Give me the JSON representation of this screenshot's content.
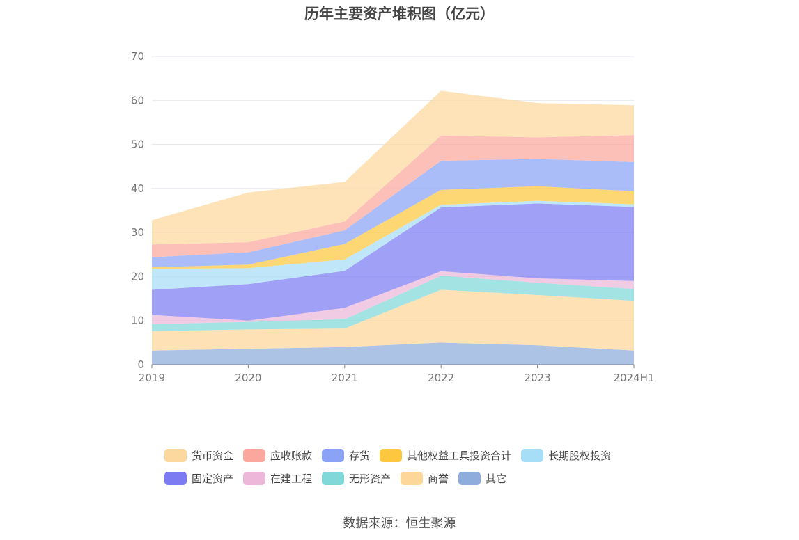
{
  "chart_data": {
    "type": "area",
    "stacked": true,
    "title": "历年主要资产堆积图（亿元）",
    "xlabel": "",
    "ylabel": "",
    "categories": [
      "2019",
      "2020",
      "2021",
      "2022",
      "2023",
      "2024H1"
    ],
    "ylim": [
      0,
      70
    ],
    "yticks": [
      0,
      10,
      20,
      30,
      40,
      50,
      60,
      70
    ],
    "grid": true,
    "legend_position": "bottom",
    "series": [
      {
        "name": "其它",
        "color": "#8eacdc",
        "values": [
          3.2,
          3.6,
          4.0,
          5.0,
          4.4,
          3.2
        ]
      },
      {
        "name": "商誉",
        "color": "#fdd79a",
        "values": [
          4.4,
          4.4,
          4.2,
          12.0,
          11.4,
          11.3
        ]
      },
      {
        "name": "无形资产",
        "color": "#80d8d8",
        "values": [
          1.6,
          1.7,
          2.1,
          3.2,
          2.8,
          2.7
        ]
      },
      {
        "name": "在建工程",
        "color": "#ecb7d9",
        "values": [
          2.1,
          0.3,
          2.6,
          1.0,
          1.0,
          1.8
        ]
      },
      {
        "name": "固定资产",
        "color": "#7c7bf2",
        "values": [
          5.7,
          8.3,
          8.4,
          14.5,
          17.0,
          16.8
        ]
      },
      {
        "name": "长期股权投资",
        "color": "#a7def7",
        "values": [
          4.8,
          3.6,
          2.6,
          0.6,
          0.6,
          0.6
        ]
      },
      {
        "name": "其他权益工具投资合计",
        "color": "#fdc840",
        "values": [
          0.3,
          0.8,
          3.5,
          3.4,
          3.3,
          3.0
        ]
      },
      {
        "name": "存货",
        "color": "#8aa3f7",
        "values": [
          2.3,
          2.8,
          3.1,
          6.6,
          6.2,
          6.6
        ]
      },
      {
        "name": "应收账款",
        "color": "#fba79e",
        "values": [
          2.9,
          2.3,
          2.0,
          5.7,
          4.9,
          6.1
        ]
      },
      {
        "name": "货币资金",
        "color": "#fdd89e",
        "values": [
          5.5,
          11.3,
          9.0,
          10.2,
          7.8,
          6.8
        ]
      }
    ],
    "legend_rows": [
      [
        "货币资金",
        "应收账款",
        "存货",
        "其他权益工具投资合计",
        "长期股权投资"
      ],
      [
        "固定资产",
        "在建工程",
        "无形资产",
        "商誉",
        "其它"
      ]
    ]
  },
  "source_note": "数据来源：恒生聚源"
}
